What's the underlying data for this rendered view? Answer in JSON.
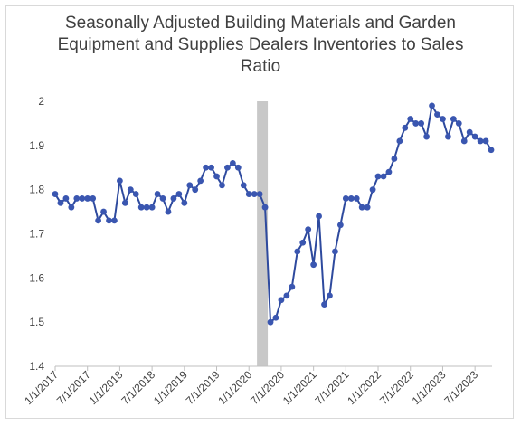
{
  "chart_data": {
    "type": "line",
    "title_lines": [
      "Seasonally Adjusted Building Materials and Garden",
      "Equipment and Supplies Dealers Inventories to Sales",
      "Ratio"
    ],
    "xlabel": "",
    "ylabel": "",
    "ylim": [
      1.4,
      2.0
    ],
    "yticks": [
      "1.4",
      "1.5",
      "1.6",
      "1.7",
      "1.8",
      "1.9",
      "2"
    ],
    "xticks": [
      "1/1/2017",
      "7/1/2017",
      "1/1/2018",
      "7/1/2018",
      "1/1/2019",
      "7/1/2019",
      "1/1/2020",
      "7/1/2020",
      "1/1/2021",
      "7/1/2021",
      "1/1/2022",
      "7/1/2022",
      "1/1/2023",
      "7/1/2023"
    ],
    "start_month": "2017-01",
    "recession_band": {
      "start": "2020-03",
      "end": "2020-04"
    },
    "line_color": "#2e4a9e",
    "marker_color": "#3a56b0",
    "band_color": "#c8c8c8",
    "series": [
      {
        "values": [
          1.79,
          1.77,
          1.78,
          1.76,
          1.78,
          1.78,
          1.78,
          1.78,
          1.73,
          1.75,
          1.73,
          1.73,
          1.82,
          1.77,
          1.8,
          1.79,
          1.76,
          1.76,
          1.76,
          1.79,
          1.78,
          1.75,
          1.78,
          1.79,
          1.77,
          1.81,
          1.8,
          1.82,
          1.85,
          1.85,
          1.83,
          1.81,
          1.85,
          1.86,
          1.85,
          1.81,
          1.79,
          1.79,
          1.79,
          1.76,
          1.5,
          1.51,
          1.55,
          1.56,
          1.58,
          1.66,
          1.68,
          1.71,
          1.63,
          1.74,
          1.54,
          1.56,
          1.66,
          1.72,
          1.78,
          1.78,
          1.78,
          1.76,
          1.76,
          1.8,
          1.83,
          1.83,
          1.84,
          1.87,
          1.91,
          1.94,
          1.96,
          1.95,
          1.95,
          1.92,
          1.99,
          1.97,
          1.96,
          1.92,
          1.96,
          1.95,
          1.91,
          1.93,
          1.92,
          1.91,
          1.91,
          1.89
        ]
      }
    ]
  }
}
